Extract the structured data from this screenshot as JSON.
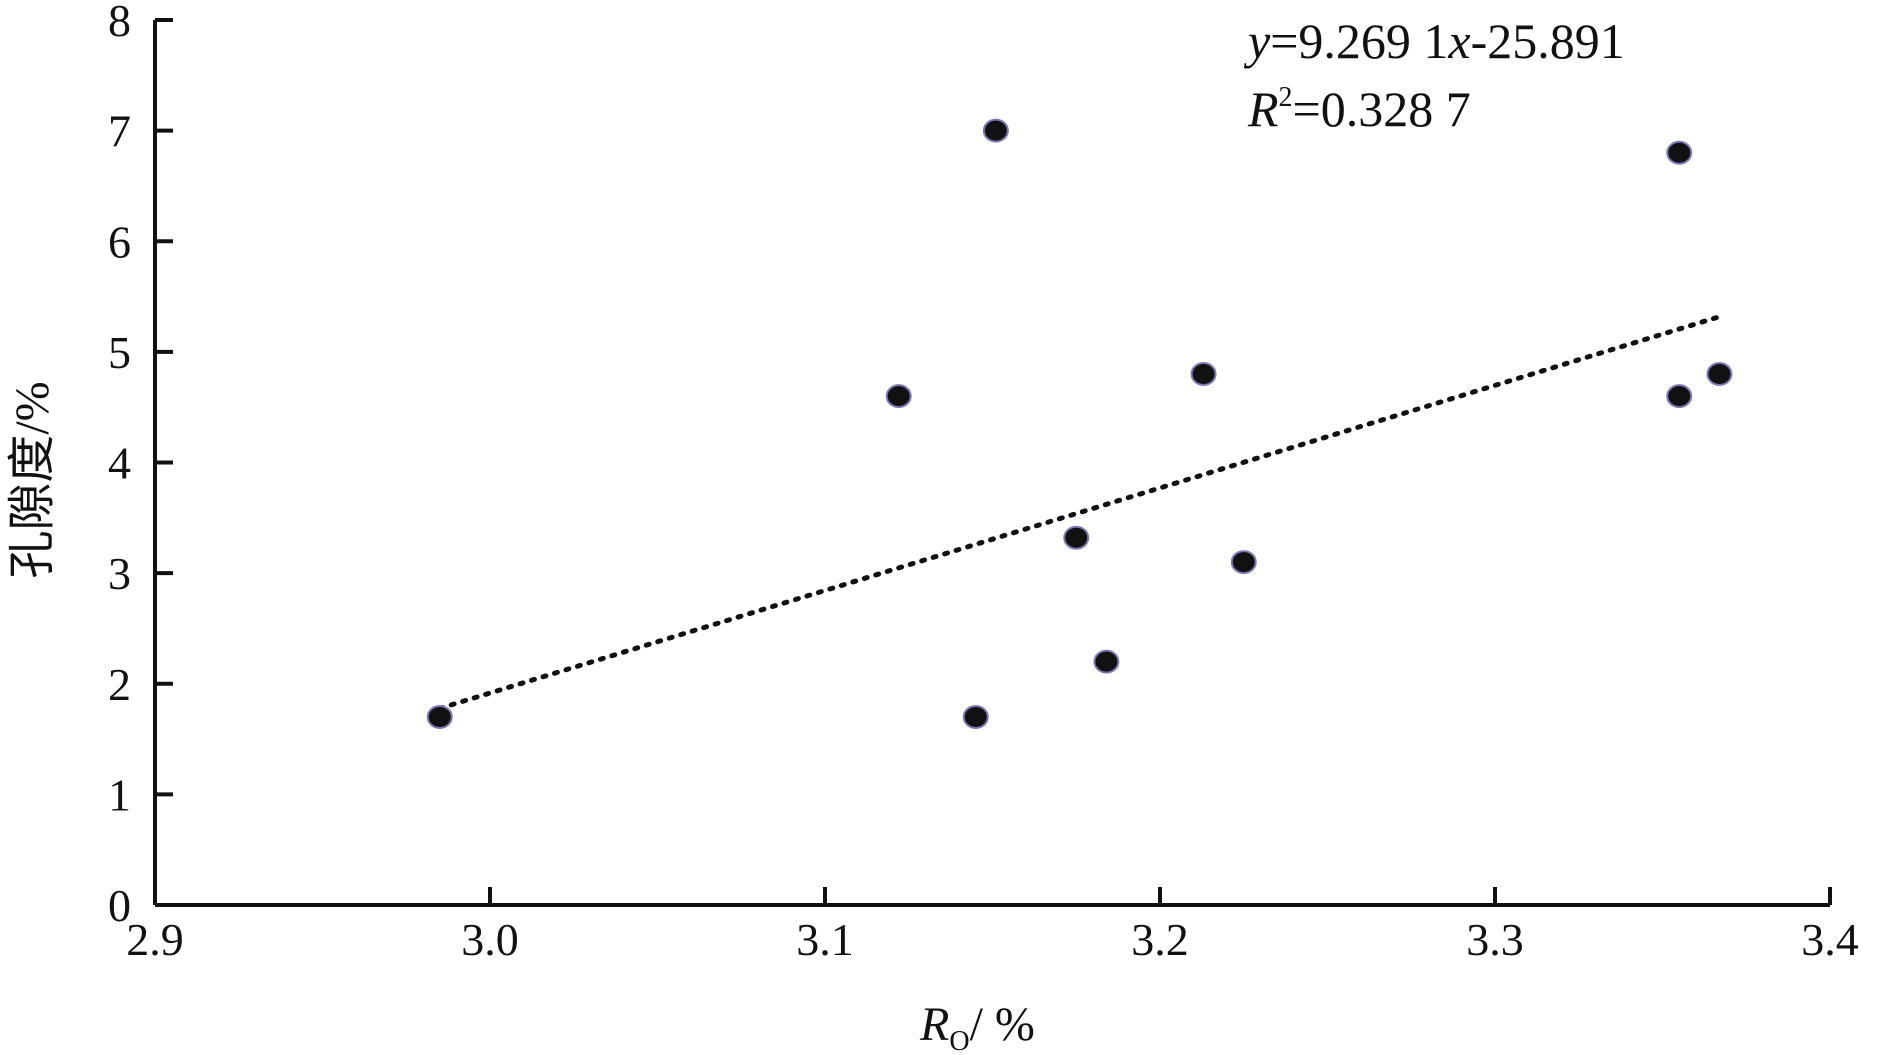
{
  "chart_data": {
    "type": "scatter",
    "xlabel_main": "R",
    "xlabel_sub": "O",
    "xlabel_unit": "/ %",
    "ylabel": "孔隙度/%",
    "xlim": [
      2.9,
      3.4
    ],
    "ylim": [
      0,
      8
    ],
    "x_ticks": [
      "2.9",
      "3.0",
      "3.1",
      "3.2",
      "3.3",
      "3.4"
    ],
    "y_ticks": [
      "0",
      "1",
      "2",
      "3",
      "4",
      "5",
      "6",
      "7",
      "8"
    ],
    "grid": false,
    "series": [
      {
        "points": [
          {
            "x": 2.985,
            "y": 1.7
          },
          {
            "x": 3.122,
            "y": 4.6
          },
          {
            "x": 3.145,
            "y": 1.7
          },
          {
            "x": 3.151,
            "y": 7.0
          },
          {
            "x": 3.175,
            "y": 3.32
          },
          {
            "x": 3.184,
            "y": 2.2
          },
          {
            "x": 3.213,
            "y": 4.8
          },
          {
            "x": 3.225,
            "y": 3.1
          },
          {
            "x": 3.355,
            "y": 6.8
          },
          {
            "x": 3.355,
            "y": 4.6
          },
          {
            "x": 3.367,
            "y": 4.8
          }
        ]
      }
    ],
    "trendline": {
      "slope": 9.2691,
      "intercept": -25.891,
      "x_start": 2.985,
      "x_end": 3.367,
      "style": "dotted"
    },
    "annotation": {
      "eq_y": "y",
      "eq_rest": "=9.269 1",
      "eq_x": "x",
      "eq_tail": "-25.891",
      "r_var": "R",
      "r_sup": "2",
      "r_rest": "=0.328 7"
    }
  }
}
